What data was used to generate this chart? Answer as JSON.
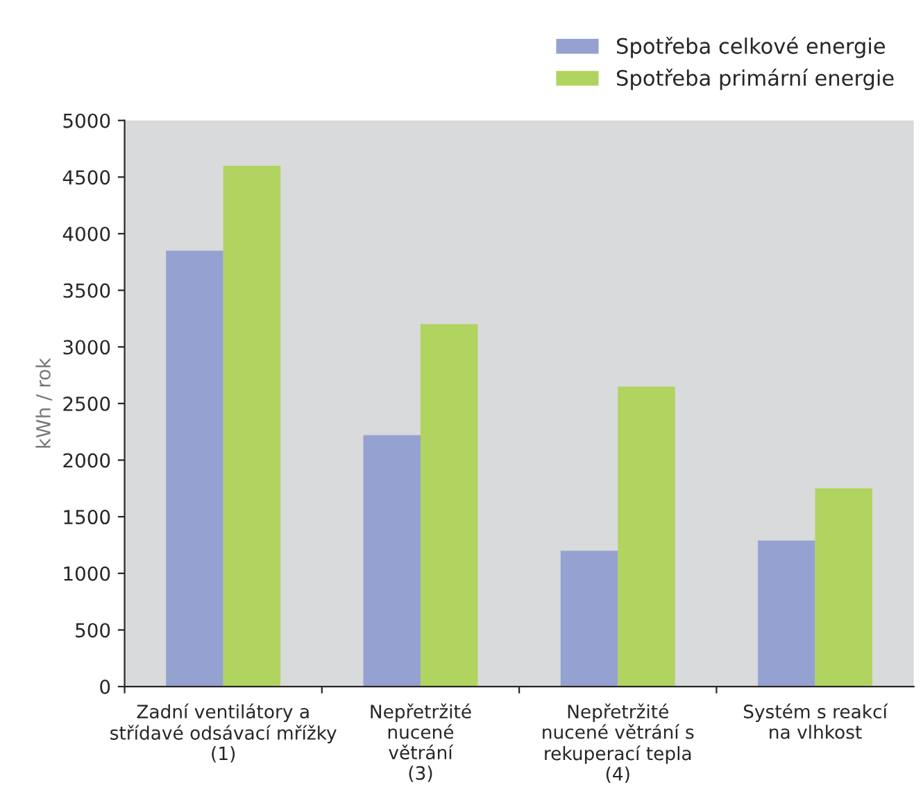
{
  "chart_data": {
    "type": "bar",
    "ylabel": "kWh / rok",
    "categories": [
      "Zadní ventilátory a\nstřídavé odsávací mřížky\n(1)",
      "Nepřetržité\nnucené\nvětrání\n(3)",
      "Nepřetržité\nnucené větrání s\nrekuperací tepla\n(4)",
      "Systém s reakcí\nna vlhkost"
    ],
    "series": [
      {
        "name": "Spotřeba celkové energie",
        "color": "#95a1d0",
        "values": [
          3850,
          2220,
          1200,
          1290
        ]
      },
      {
        "name": "Spotřeba primární energie",
        "color": "#b1d35f",
        "values": [
          4600,
          3200,
          2650,
          1750
        ]
      }
    ],
    "ylim": [
      0,
      5000
    ],
    "yticks": [
      0,
      500,
      1000,
      1500,
      2000,
      2500,
      3000,
      3500,
      4000,
      4500,
      5000
    ],
    "grid": false,
    "legend": "top right"
  }
}
